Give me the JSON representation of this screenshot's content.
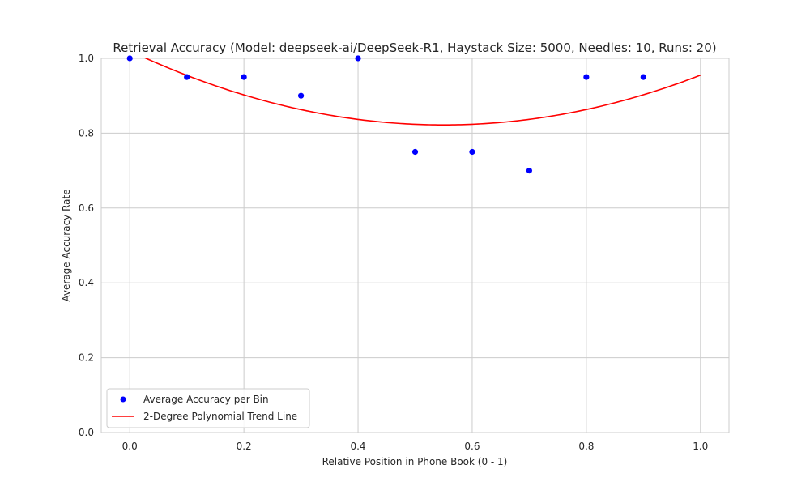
{
  "chart_data": {
    "type": "scatter",
    "title": "Retrieval Accuracy (Model: deepseek-ai/DeepSeek-R1, Haystack Size: 5000, Needles: 10, Runs: 20)",
    "xlabel": "Relative Position in Phone Book (0 - 1)",
    "ylabel": "Average Accuracy Rate",
    "xlim": [
      -0.05,
      1.05
    ],
    "ylim": [
      0.0,
      1.0
    ],
    "x_ticks": [
      "0.0",
      "0.2",
      "0.4",
      "0.6",
      "0.8",
      "1.0"
    ],
    "y_ticks": [
      "0.0",
      "0.2",
      "0.4",
      "0.6",
      "0.8",
      "1.0"
    ],
    "grid": true,
    "legend_position": "lower-left",
    "series": [
      {
        "name": "Average Accuracy per Bin",
        "kind": "scatter",
        "color": "#0000ff",
        "x": [
          0.0,
          0.1,
          0.2,
          0.3,
          0.4,
          0.5,
          0.6,
          0.7,
          0.8,
          0.9
        ],
        "y": [
          1.0,
          0.95,
          0.95,
          0.9,
          1.0,
          0.75,
          0.75,
          0.7,
          0.95,
          0.95
        ]
      },
      {
        "name": "2-Degree Polynomial Trend Line",
        "kind": "line",
        "color": "#ff0000",
        "coefficients": [
          1.02,
          -0.72,
          0.655
        ],
        "x_range": [
          0.0,
          1.0
        ]
      }
    ]
  }
}
